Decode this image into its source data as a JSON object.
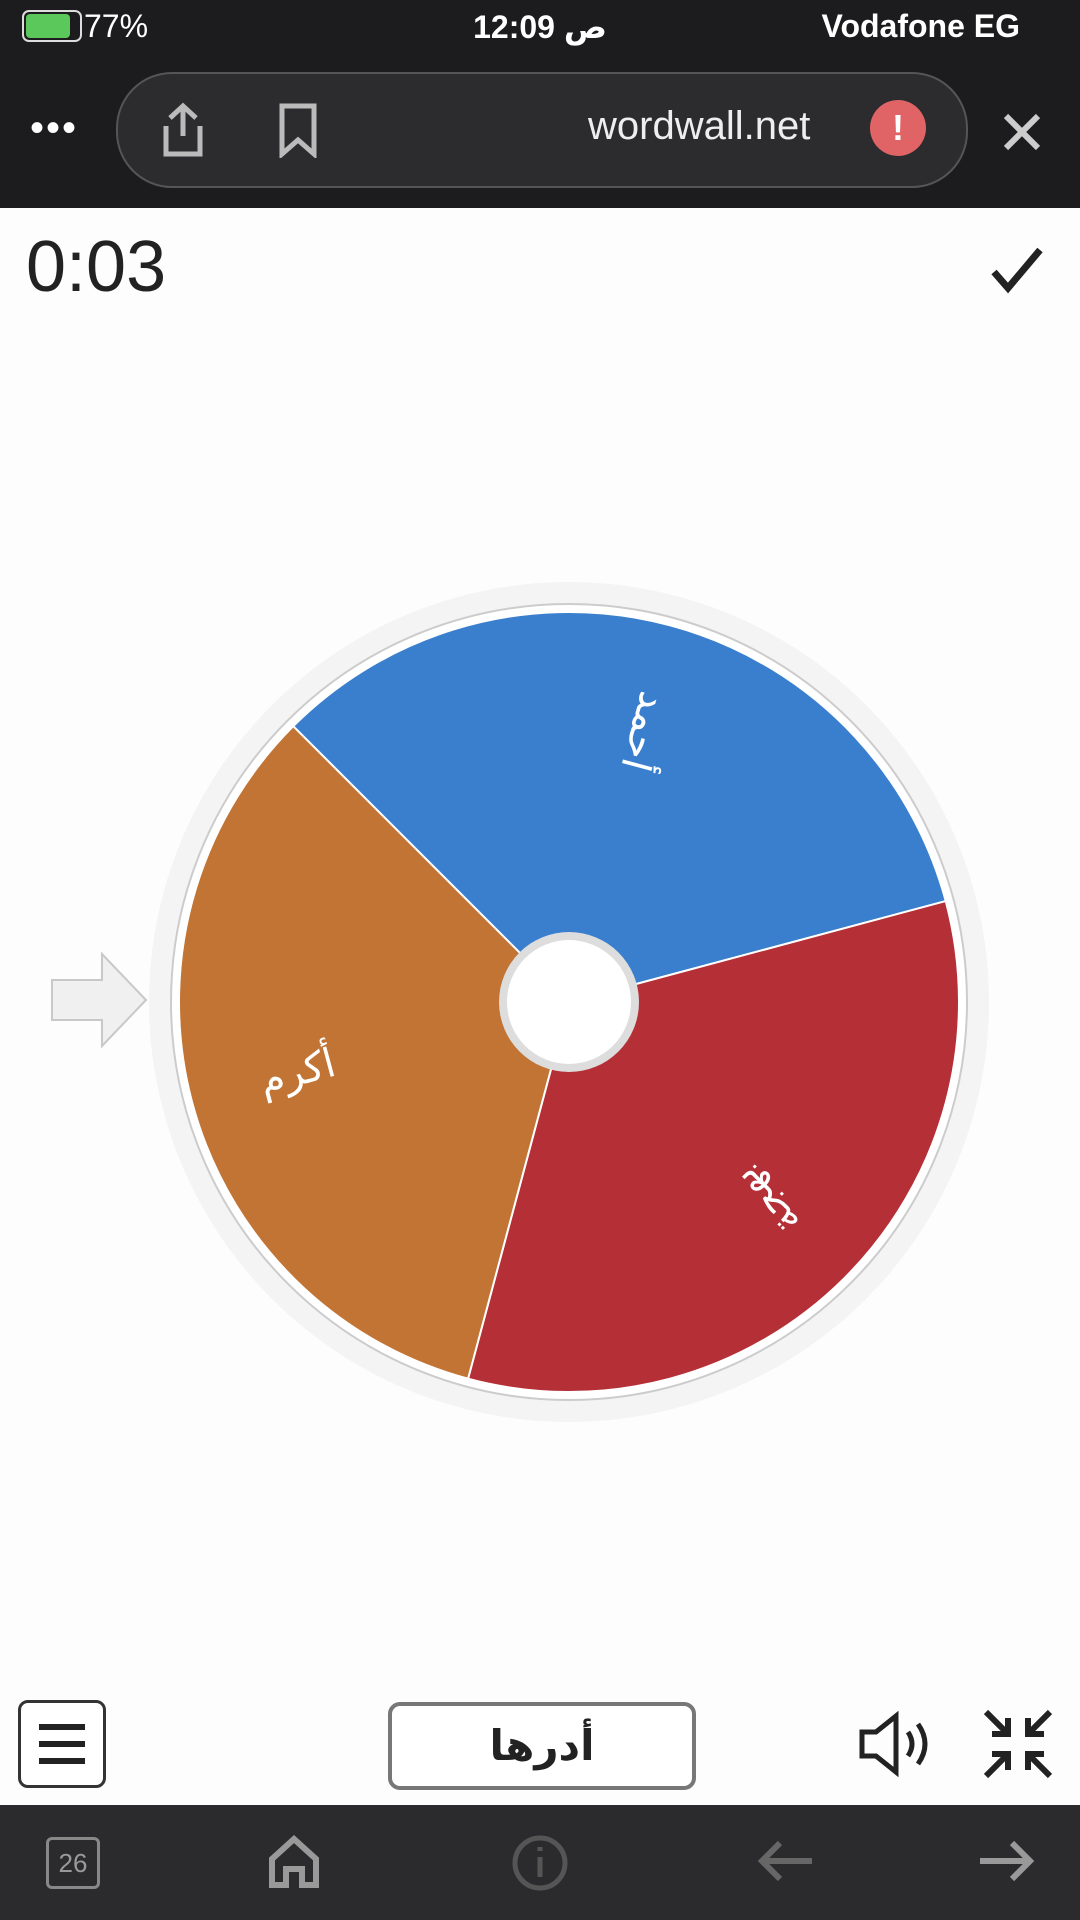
{
  "status_bar": {
    "battery": "77%",
    "time": "12:09 ص",
    "carrier": "Vodafone EG"
  },
  "browser": {
    "url": "wordwall.net"
  },
  "game": {
    "timer": "0:03",
    "wheel": {
      "segments": [
        {
          "label": "أحمد",
          "color": "#3a7fce"
        },
        {
          "label": "بهجة",
          "color": "#b52f36"
        },
        {
          "label": "أكرم",
          "color": "#c17434"
        }
      ]
    },
    "spin_button": "أدرها"
  },
  "toolbar": {
    "tabs": "26"
  }
}
